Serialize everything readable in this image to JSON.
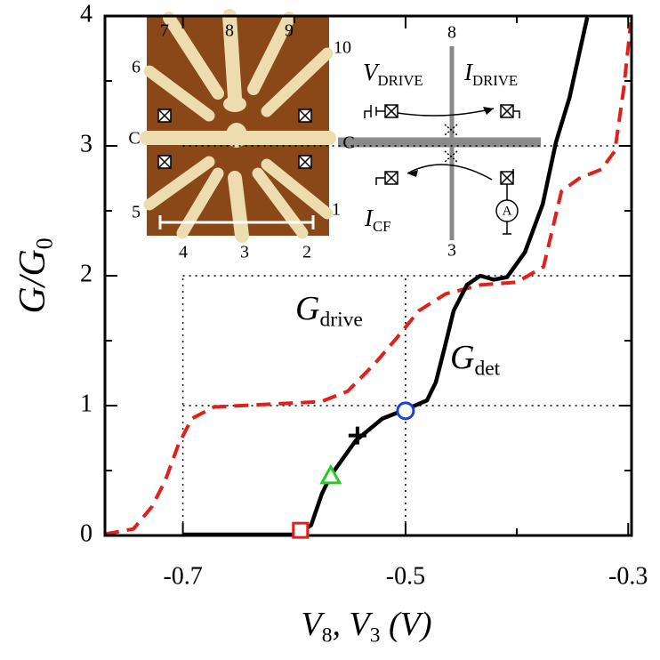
{
  "chart_data": {
    "type": "line",
    "xlabel": [
      {
        "text": "V"
      },
      {
        "text": "8",
        "sub": true
      },
      {
        "text": ", V"
      },
      {
        "text": "3",
        "sub": true
      },
      {
        "text": " (V)"
      }
    ],
    "ylabel": [
      {
        "text": "G/G"
      },
      {
        "text": "0",
        "sub": true
      }
    ],
    "xlim": [
      -0.77,
      -0.297
    ],
    "ylim": [
      0,
      4
    ],
    "xticks": [
      -0.7,
      -0.5,
      -0.3
    ],
    "xticks_minor": [
      -0.6,
      -0.4
    ],
    "yticks": [
      0,
      1,
      2,
      3,
      4
    ],
    "yticks_minor": [
      0.5,
      1.5,
      2.5,
      3.5
    ],
    "hlines": [
      1,
      2,
      3
    ],
    "vlines": [
      -0.7,
      -0.5
    ],
    "series": [
      {
        "name": [
          {
            "text": "G"
          },
          {
            "text": "drive",
            "sub": true
          }
        ],
        "color": "#e0201b",
        "dash": true,
        "x": [
          -0.77,
          -0.7444,
          -0.728,
          -0.716,
          -0.704,
          -0.692,
          -0.672,
          -0.624,
          -0.576,
          -0.552,
          -0.528,
          -0.508,
          -0.488,
          -0.464,
          -0.432,
          -0.4,
          -0.376,
          -0.36,
          -0.344,
          -0.324,
          -0.312,
          -0.304,
          -0.2976
        ],
        "values": [
          0.01,
          0.05,
          0.22,
          0.42,
          0.7,
          0.9,
          0.99,
          1.01,
          1.03,
          1.11,
          1.32,
          1.52,
          1.73,
          1.86,
          1.93,
          1.95,
          2.07,
          2.65,
          2.75,
          2.82,
          2.96,
          3.44,
          3.95
        ]
      },
      {
        "name": [
          {
            "text": "G"
          },
          {
            "text": "det",
            "sub": true
          }
        ],
        "color": "#000000",
        "dash": false,
        "x": [
          -0.7,
          -0.5968,
          -0.5848,
          -0.5752,
          -0.5672,
          -0.5448,
          -0.5208,
          -0.5,
          -0.4808,
          -0.4728,
          -0.4648,
          -0.4568,
          -0.4448,
          -0.4328,
          -0.4208,
          -0.4088,
          -0.3928,
          -0.3768,
          -0.3648,
          -0.3528,
          -0.3368
        ],
        "values": [
          0.007,
          0.007,
          0.08,
          0.32,
          0.46,
          0.73,
          0.9,
          0.97,
          1.04,
          1.18,
          1.45,
          1.73,
          1.93,
          2.0,
          1.97,
          1.99,
          2.18,
          2.55,
          3.03,
          3.37,
          3.99
        ]
      }
    ],
    "markers": [
      {
        "shape": "square",
        "color": "#e0201b",
        "x": -0.5944,
        "y": 0.04
      },
      {
        "shape": "triangle",
        "color": "#22cc22",
        "x": -0.5672,
        "y": 0.46
      },
      {
        "shape": "plus",
        "color": "#000000",
        "x": -0.5432,
        "y": 0.77
      },
      {
        "shape": "circle",
        "color": "#1f3fd8",
        "x": -0.5,
        "y": 0.96
      }
    ],
    "inset_image_labels": [
      "7",
      "8",
      "9",
      "10",
      "6",
      "C",
      "5",
      "1",
      "4",
      "3",
      "2"
    ],
    "schematic": {
      "top": "8",
      "bottom": "3",
      "left": "C",
      "v_drive": [
        {
          "text": "V"
        },
        {
          "text": "DRIVE",
          "sub": true
        }
      ],
      "i_drive": [
        {
          "text": "I"
        },
        {
          "text": "DRIVE",
          "sub": true
        }
      ],
      "i_cf": [
        {
          "text": "I"
        },
        {
          "text": "CF",
          "sub": true
        }
      ],
      "meter": "A"
    }
  }
}
